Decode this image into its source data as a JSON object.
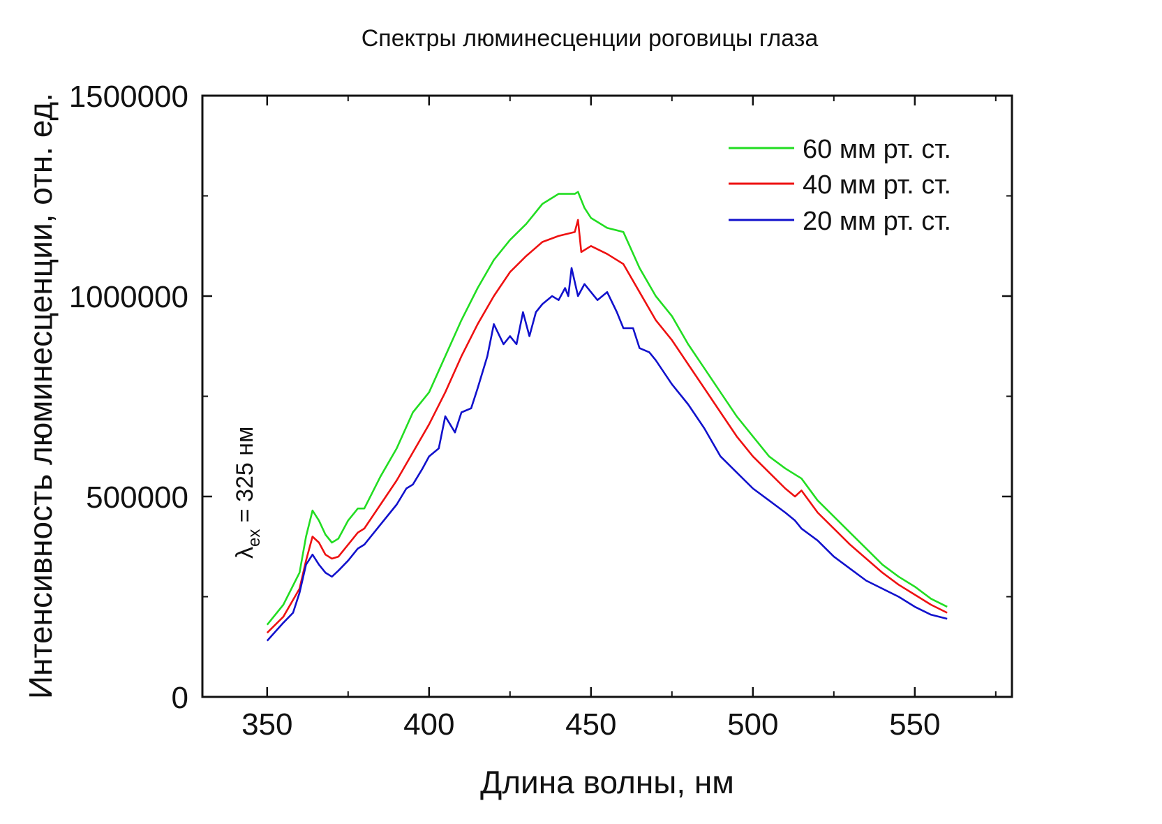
{
  "chart_data": {
    "type": "line",
    "title": "Спектры люминесценции роговицы глаза",
    "xlabel": "Длина волны, нм",
    "ylabel": "Интенсивность люминесценции, отн. ед.",
    "xlim": [
      330,
      580
    ],
    "ylim": [
      0,
      1500000
    ],
    "xticks": [
      350,
      400,
      450,
      500,
      550
    ],
    "xtick_labels": [
      "350",
      "400",
      "450",
      "500",
      "550"
    ],
    "xminor": [
      375,
      425,
      475,
      525,
      575
    ],
    "yticks": [
      0,
      500000,
      1000000,
      1500000
    ],
    "ytick_labels": [
      "0",
      "500000",
      "1000000",
      "1500000"
    ],
    "yminor": [
      250000,
      750000,
      1250000
    ],
    "grid": false,
    "legend_position": "top-right",
    "annotation": {
      "lambda": "λ",
      "sub": "ex",
      "rest": " = 325 нм"
    },
    "series": [
      {
        "name": "60 мм рт. ст.",
        "color": "#22dd22",
        "x": [
          350,
          355,
          360,
          362,
          364,
          366,
          368,
          370,
          372,
          375,
          378,
          380,
          385,
          390,
          395,
          400,
          405,
          410,
          415,
          420,
          425,
          430,
          435,
          440,
          445,
          446,
          448,
          450,
          455,
          460,
          465,
          470,
          475,
          480,
          485,
          490,
          495,
          500,
          505,
          510,
          515,
          520,
          525,
          530,
          535,
          540,
          545,
          550,
          555,
          560
        ],
        "y": [
          180000,
          230000,
          310000,
          400000,
          465000,
          440000,
          405000,
          385000,
          395000,
          440000,
          470000,
          470000,
          550000,
          620000,
          710000,
          760000,
          850000,
          940000,
          1020000,
          1090000,
          1140000,
          1180000,
          1230000,
          1255000,
          1255000,
          1260000,
          1220000,
          1195000,
          1170000,
          1160000,
          1070000,
          1000000,
          950000,
          880000,
          820000,
          760000,
          700000,
          650000,
          600000,
          570000,
          545000,
          490000,
          450000,
          410000,
          370000,
          330000,
          300000,
          275000,
          245000,
          225000
        ]
      },
      {
        "name": "40 мм рт. ст.",
        "color": "#ee1111",
        "x": [
          350,
          355,
          360,
          362,
          364,
          366,
          368,
          370,
          372,
          375,
          378,
          380,
          385,
          390,
          395,
          400,
          405,
          410,
          415,
          420,
          425,
          430,
          435,
          440,
          445,
          446,
          447,
          450,
          455,
          460,
          465,
          470,
          475,
          480,
          485,
          490,
          495,
          500,
          505,
          510,
          513,
          515,
          520,
          525,
          530,
          535,
          540,
          545,
          550,
          555,
          560
        ],
        "y": [
          160000,
          200000,
          270000,
          340000,
          400000,
          385000,
          355000,
          345000,
          350000,
          380000,
          410000,
          420000,
          480000,
          540000,
          610000,
          680000,
          760000,
          850000,
          930000,
          1000000,
          1060000,
          1100000,
          1135000,
          1150000,
          1160000,
          1190000,
          1110000,
          1125000,
          1105000,
          1080000,
          1010000,
          940000,
          890000,
          830000,
          770000,
          710000,
          650000,
          600000,
          560000,
          520000,
          500000,
          515000,
          460000,
          420000,
          380000,
          345000,
          310000,
          280000,
          255000,
          230000,
          210000
        ]
      },
      {
        "name": "20 мм рт. ст.",
        "color": "#1111cc",
        "x": [
          350,
          355,
          358,
          360,
          362,
          364,
          366,
          368,
          370,
          372,
          375,
          378,
          380,
          385,
          388,
          390,
          393,
          395,
          398,
          400,
          403,
          405,
          408,
          410,
          413,
          415,
          418,
          420,
          423,
          425,
          427,
          429,
          431,
          433,
          435,
          438,
          440,
          442,
          443,
          444,
          446,
          448,
          450,
          452,
          455,
          458,
          460,
          463,
          465,
          468,
          470,
          475,
          480,
          485,
          490,
          495,
          500,
          505,
          510,
          513,
          515,
          520,
          525,
          530,
          535,
          540,
          545,
          550,
          555,
          560
        ],
        "y": [
          140000,
          185000,
          210000,
          260000,
          330000,
          355000,
          330000,
          310000,
          300000,
          315000,
          340000,
          370000,
          380000,
          430000,
          460000,
          480000,
          520000,
          530000,
          570000,
          600000,
          620000,
          700000,
          660000,
          710000,
          720000,
          770000,
          850000,
          930000,
          880000,
          900000,
          880000,
          960000,
          900000,
          960000,
          980000,
          1000000,
          990000,
          1020000,
          1000000,
          1070000,
          1000000,
          1030000,
          1010000,
          990000,
          1010000,
          960000,
          920000,
          920000,
          870000,
          860000,
          840000,
          780000,
          730000,
          670000,
          600000,
          560000,
          520000,
          490000,
          460000,
          440000,
          420000,
          390000,
          350000,
          320000,
          290000,
          270000,
          250000,
          225000,
          205000,
          195000
        ]
      }
    ]
  }
}
